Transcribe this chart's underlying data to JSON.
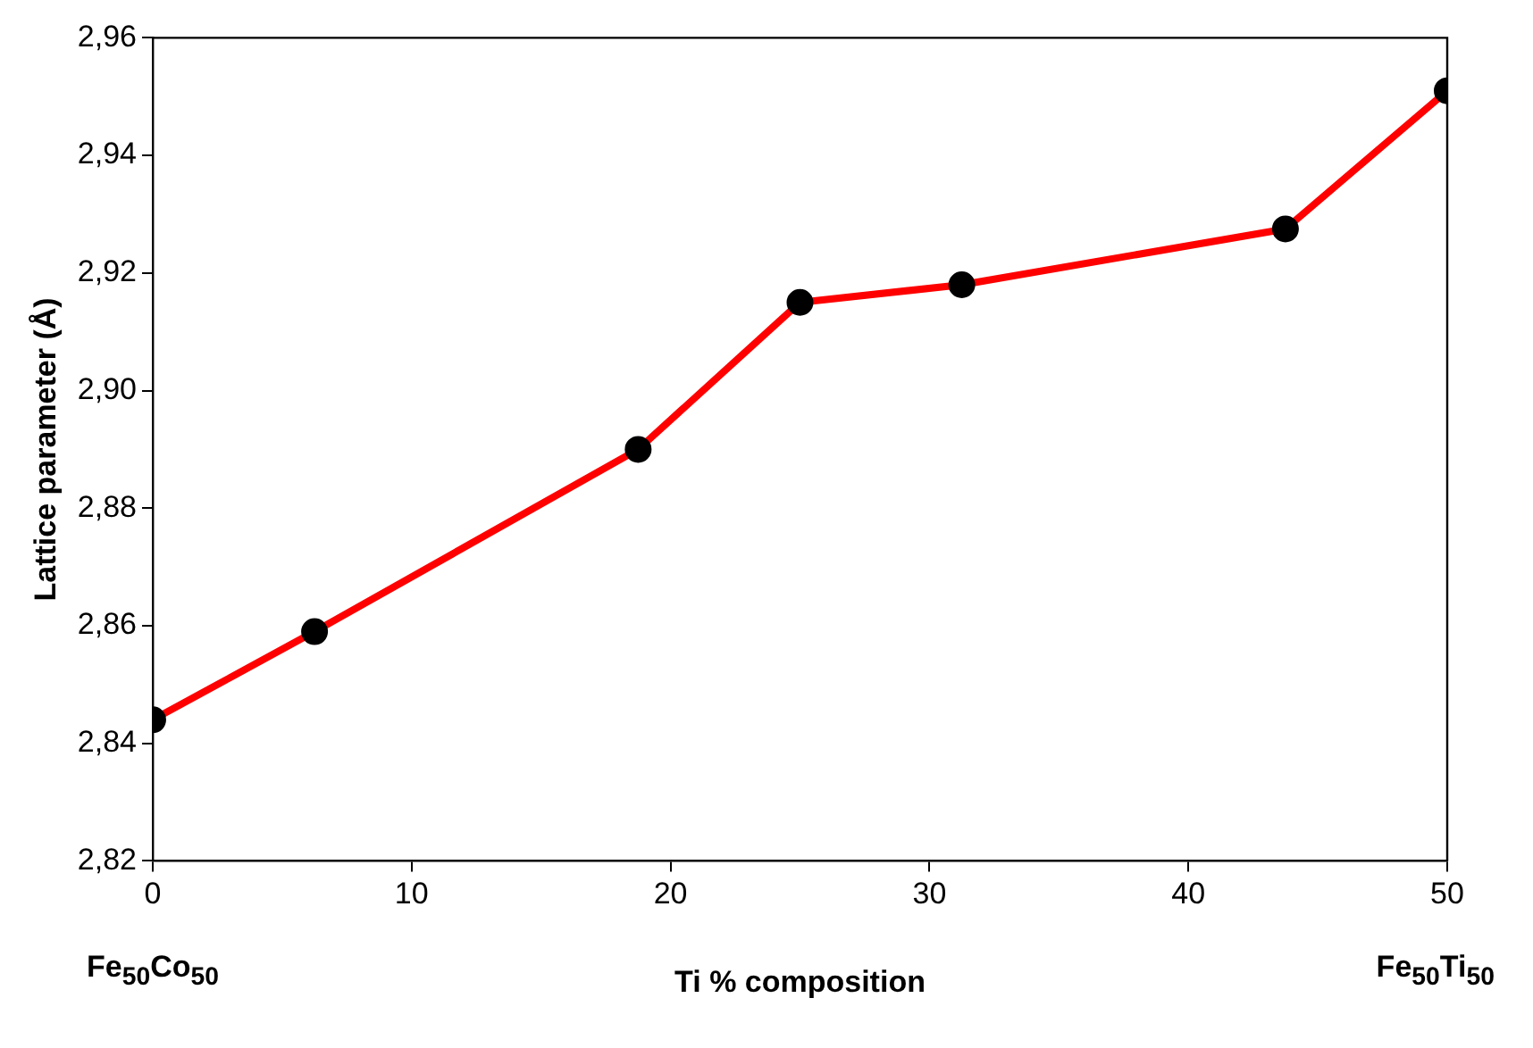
{
  "chart_data": {
    "type": "line",
    "xlabel": "Ti % composition",
    "ylabel": "Lattice parameter (Å)",
    "x": [
      0,
      6.25,
      18.75,
      25,
      31.25,
      43.75,
      50
    ],
    "series": [
      {
        "color": "#ff0000",
        "values": [
          2.844,
          2.859,
          2.89,
          2.915,
          2.918,
          2.9275,
          2.951
        ]
      }
    ],
    "xlim": [
      0,
      50
    ],
    "xticks": [
      0,
      10,
      20,
      30,
      40,
      50
    ],
    "ylim": [
      2.82,
      2.96
    ],
    "yticks": [
      {
        "value": 2.82,
        "label": "2,82"
      },
      {
        "value": 2.84,
        "label": "2,84"
      },
      {
        "value": 2.86,
        "label": "2,86"
      },
      {
        "value": 2.88,
        "label": "2,88"
      },
      {
        "value": 2.9,
        "label": "2,90"
      },
      {
        "value": 2.92,
        "label": "2,92"
      },
      {
        "value": 2.94,
        "label": "2,94"
      },
      {
        "value": 2.96,
        "label": "2,96"
      }
    ],
    "marker": "circle",
    "line_style": "solid",
    "legend": false,
    "annotations": [
      "Fe$_{50}$Co$_{50}$",
      "Fe$_{50}$Ti$_{50}$"
    ]
  }
}
